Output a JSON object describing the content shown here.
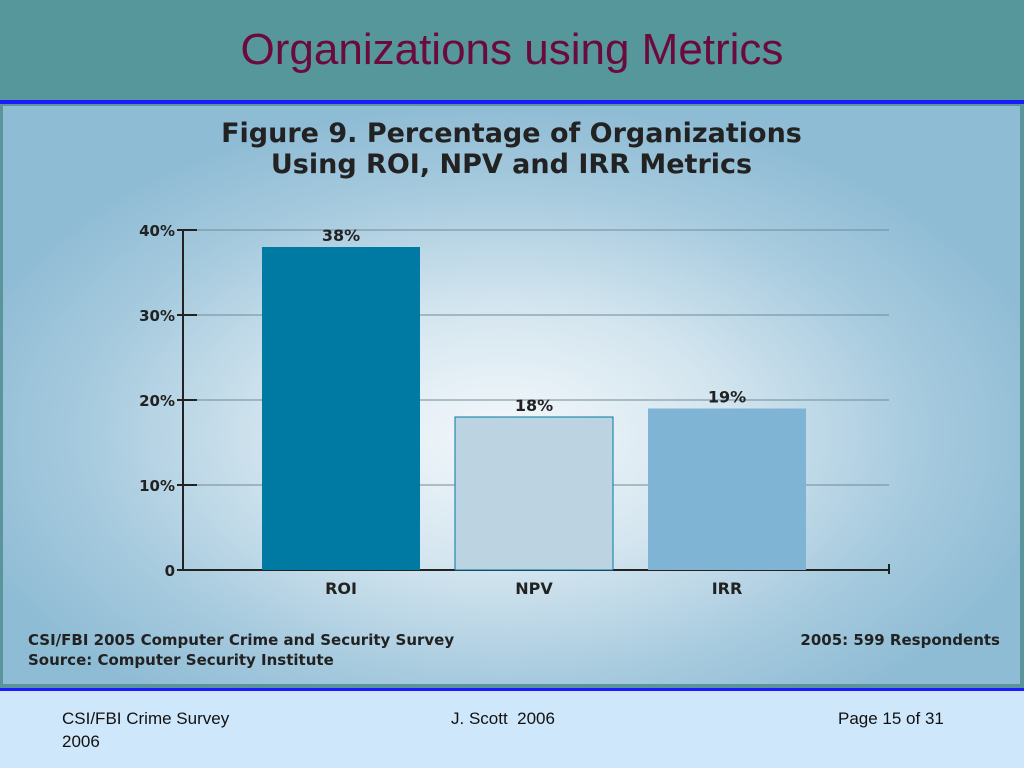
{
  "slide": {
    "title": "Organizations using Metrics"
  },
  "figure": {
    "title_line1": "Figure 9. Percentage of Organizations",
    "title_line2": "Using ROI, NPV and IRR Metrics",
    "source_line1": "CSI/FBI 2005 Computer Crime and Security Survey",
    "source_line2": "Source: Computer Security Institute",
    "respondents": "2005: 599 Respondents"
  },
  "chart_data": {
    "type": "bar",
    "categories": [
      "ROI",
      "NPV",
      "IRR"
    ],
    "values": [
      38,
      18,
      19
    ],
    "value_labels": [
      "38%",
      "18%",
      "19%"
    ],
    "bar_colors": [
      "#0079a3",
      "#bcd4e2",
      "#7fb4d4"
    ],
    "ylim": [
      0,
      40
    ],
    "yticks": [
      0,
      10,
      20,
      30,
      40
    ],
    "ytick_labels": [
      "0",
      "10%",
      "20%",
      "30%",
      "40%"
    ],
    "grid": true,
    "title": "Figure 9. Percentage of Organizations Using ROI, NPV and IRR Metrics",
    "xlabel": "",
    "ylabel": ""
  },
  "footer": {
    "left_line1": "CSI/FBI Crime Survey",
    "left_line2": "2006",
    "center": "J. Scott  2006",
    "right": "Page 15 of 31"
  }
}
